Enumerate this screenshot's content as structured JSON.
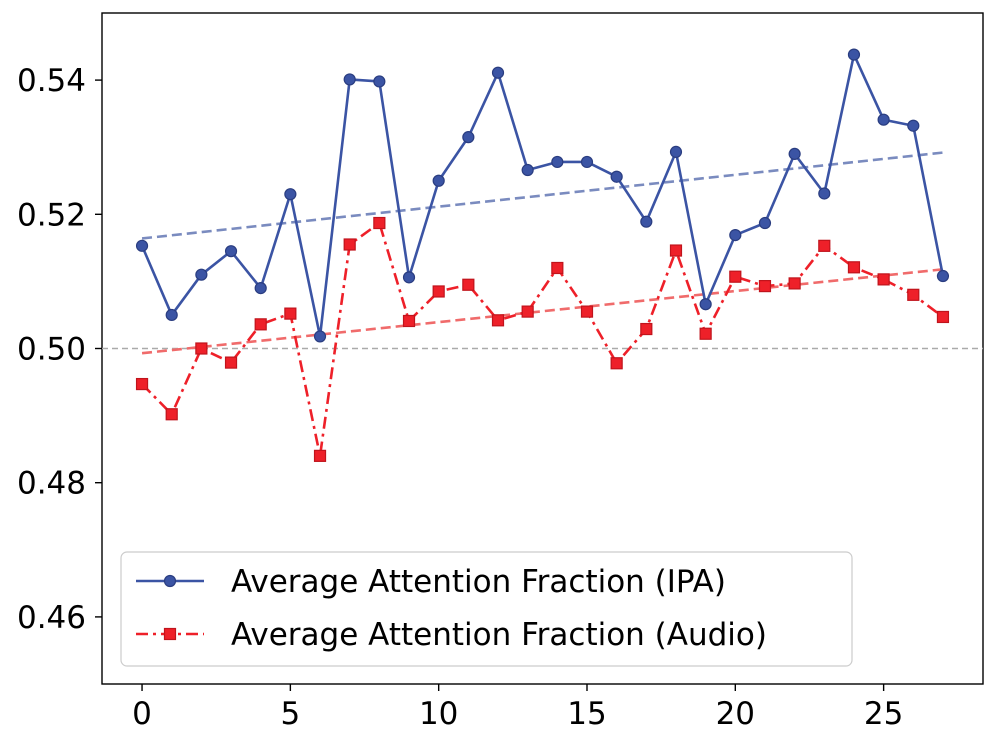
{
  "chart_data": {
    "type": "line",
    "title": "",
    "xlabel": "",
    "ylabel": "",
    "xlim": [
      -1.35,
      28.35
    ],
    "ylim": [
      0.45,
      0.55
    ],
    "xticks": [
      0,
      5,
      10,
      15,
      20,
      25
    ],
    "yticks": [
      0.46,
      0.48,
      0.5,
      0.52,
      0.54
    ],
    "x_tick_labels": [
      "0",
      "5",
      "10",
      "15",
      "20",
      "25"
    ],
    "y_tick_labels": [
      "0.46",
      "0.48",
      "0.50",
      "0.52",
      "0.54"
    ],
    "grid": false,
    "legend_position": "bottom-left",
    "reference_line": {
      "y": 0.5,
      "color": "#aaaaaa",
      "style": "dashed"
    },
    "x": [
      0,
      1,
      2,
      3,
      4,
      5,
      6,
      7,
      8,
      9,
      10,
      11,
      12,
      13,
      14,
      15,
      16,
      17,
      18,
      19,
      20,
      21,
      22,
      23,
      24,
      25,
      26,
      27
    ],
    "series": [
      {
        "name": "Average Attention Fraction (IPA)",
        "color": "#3b54a4",
        "marker": "circle",
        "linestyle": "solid",
        "values": [
          0.5153,
          0.505,
          0.511,
          0.5145,
          0.509,
          0.523,
          0.5018,
          0.5401,
          0.5398,
          0.5106,
          0.525,
          0.5315,
          0.5411,
          0.5266,
          0.5278,
          0.5278,
          0.5256,
          0.5189,
          0.5293,
          0.5066,
          0.5169,
          0.5187,
          0.529,
          0.5231,
          0.5438,
          0.5341,
          0.5332,
          0.5108
        ],
        "trend": {
          "start": [
            0,
            0.5164
          ],
          "end": [
            27,
            0.5292
          ],
          "color": "#7a8bbf",
          "style": "dashed"
        }
      },
      {
        "name": "Average Attention Fraction (Audio)",
        "color": "#ee2029",
        "marker": "square",
        "linestyle": "dashdot",
        "values": [
          0.4947,
          0.4902,
          0.5,
          0.4979,
          0.5036,
          0.5052,
          0.484,
          0.5155,
          0.5187,
          0.5041,
          0.5085,
          0.5095,
          0.5042,
          0.5055,
          0.512,
          0.5055,
          0.4978,
          0.5029,
          0.5146,
          0.5022,
          0.5107,
          0.5093,
          0.5097,
          0.5153,
          0.5121,
          0.5103,
          0.508,
          0.5047
        ],
        "trend": {
          "start": [
            0,
            0.4993
          ],
          "end": [
            27,
            0.5118
          ],
          "color": "#f06b6b",
          "style": "dashed"
        }
      }
    ]
  }
}
